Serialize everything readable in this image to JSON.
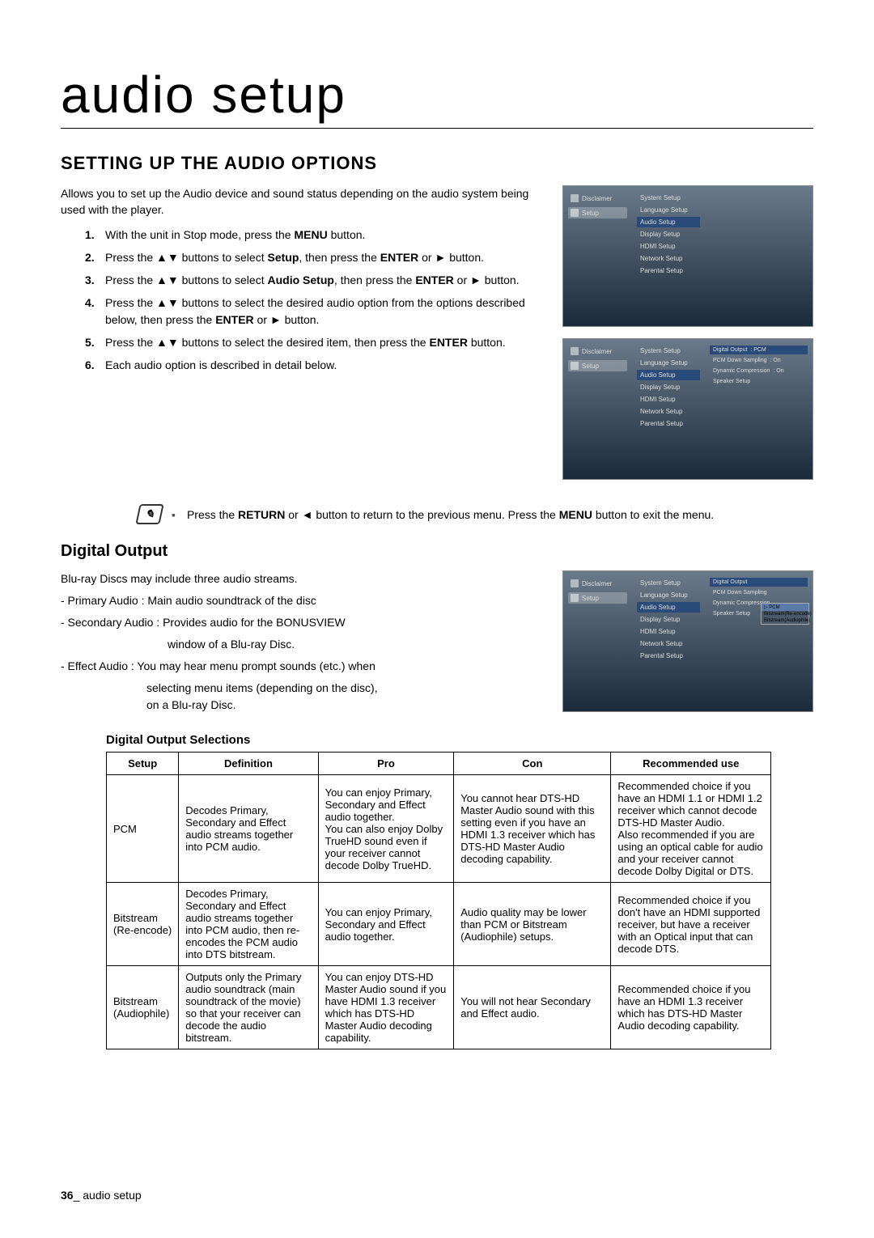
{
  "page_title": "audio setup",
  "section_title": "SETTING UP THE AUDIO OPTIONS",
  "intro": "Allows you to set up the Audio device and sound status depending on the audio system being used with the player.",
  "steps": [
    {
      "n": "1.",
      "t_pre": "With the unit in Stop mode, press the ",
      "b1": "MENU",
      "t_post": " button."
    },
    {
      "n": "2.",
      "t_pre": "Press the ▲▼ buttons to select ",
      "b1": "Setup",
      "t_mid": ", then press the ",
      "b2": "ENTER",
      "t_post": " or ► button."
    },
    {
      "n": "3.",
      "t_pre": "Press the ▲▼ buttons to select ",
      "b1": "Audio Setup",
      "t_mid": ", then press the ",
      "b2": "ENTER",
      "t_post": " or ► button."
    },
    {
      "n": "4.",
      "t_pre": "Press the ▲▼ buttons to select the desired audio option from the options described below, then press the ",
      "b1": "ENTER",
      "t_post": " or ► button."
    },
    {
      "n": "5.",
      "t_pre": "Press the ▲▼ buttons to select the desired item, then press the ",
      "b1": "ENTER",
      "t_post": " button."
    },
    {
      "n": "6.",
      "t_pre": "Each audio option is described in detail below."
    }
  ],
  "note_pre": "Press the ",
  "note_b1": "RETURN",
  "note_mid": " or ◄ button to return to the previous menu. Press the ",
  "note_b2": "MENU",
  "note_post": " button to exit the menu.",
  "digital_title": "Digital Output",
  "digital_intro": "Blu-ray Discs may include three audio streams.",
  "streams": [
    "- Primary Audio : Main audio soundtrack of the disc",
    "- Secondary Audio : Provides audio for the BONUSVIEW window of a Blu-ray Disc.",
    "- Effect Audio : You may hear menu prompt sounds (etc.) when selecting menu items (depending on the disc), on a Blu-ray Disc."
  ],
  "table_title": "Digital Output Selections",
  "headers": [
    "Setup",
    "Definition",
    "Pro",
    "Con",
    "Recommended use"
  ],
  "rows": [
    [
      "PCM",
      "Decodes Primary, Secondary and Effect audio streams together into PCM audio.",
      "You can enjoy Primary, Secondary and Effect audio together.\nYou can also enjoy Dolby TrueHD sound even if your receiver cannot decode Dolby TrueHD.",
      "You cannot hear DTS-HD Master Audio sound with this setting even if you have an HDMI 1.3 receiver which has DTS-HD Master Audio decoding capability.",
      "Recommended choice if you have an HDMI 1.1 or HDMI 1.2 receiver which cannot decode DTS-HD Master Audio.\nAlso recommended if you are using an optical cable for audio and your receiver cannot decode Dolby Digital or DTS."
    ],
    [
      "Bitstream\n(Re-encode)",
      "Decodes Primary, Secondary and Effect audio streams together into PCM audio, then re-encodes the PCM audio into DTS bitstream.",
      "You can enjoy Primary, Secondary and Effect audio together.",
      "Audio quality may be lower than PCM or Bitstream (Audiophile) setups.",
      "Recommended choice if you don't have an HDMI supported receiver, but have a receiver with an Optical input that can decode DTS."
    ],
    [
      "Bitstream\n(Audiophile)",
      "Outputs only the Primary audio soundtrack (main soundtrack of the movie) so that your receiver can decode the audio bitstream.",
      "You can enjoy DTS-HD Master Audio sound if you have HDMI 1.3 receiver which has DTS-HD Master Audio decoding capability.",
      "You will not hear Secondary and Effect audio.",
      "Recommended choice if you have an HDMI 1.3 receiver which has DTS-HD Master Audio decoding capability."
    ]
  ],
  "footer_page": "36",
  "footer_label": "_ audio setup",
  "ui": {
    "sidebar": [
      "Disclaimer",
      "Setup"
    ],
    "menu": [
      "System Setup",
      "Language Setup",
      "Audio Setup",
      "Display Setup",
      "HDMI Setup",
      "Network Setup",
      "Parental Setup"
    ],
    "right2": [
      {
        "l": "Digital Output",
        "v": ": PCM"
      },
      {
        "l": "PCM Down Sampling",
        "v": ": On"
      },
      {
        "l": "Dynamic Compression",
        "v": ": On"
      },
      {
        "l": "Speaker Setup",
        "v": ""
      }
    ],
    "popup": [
      "PCM",
      "Bitstream(Re-encode)",
      "Bitstream(Audiophile)"
    ]
  }
}
